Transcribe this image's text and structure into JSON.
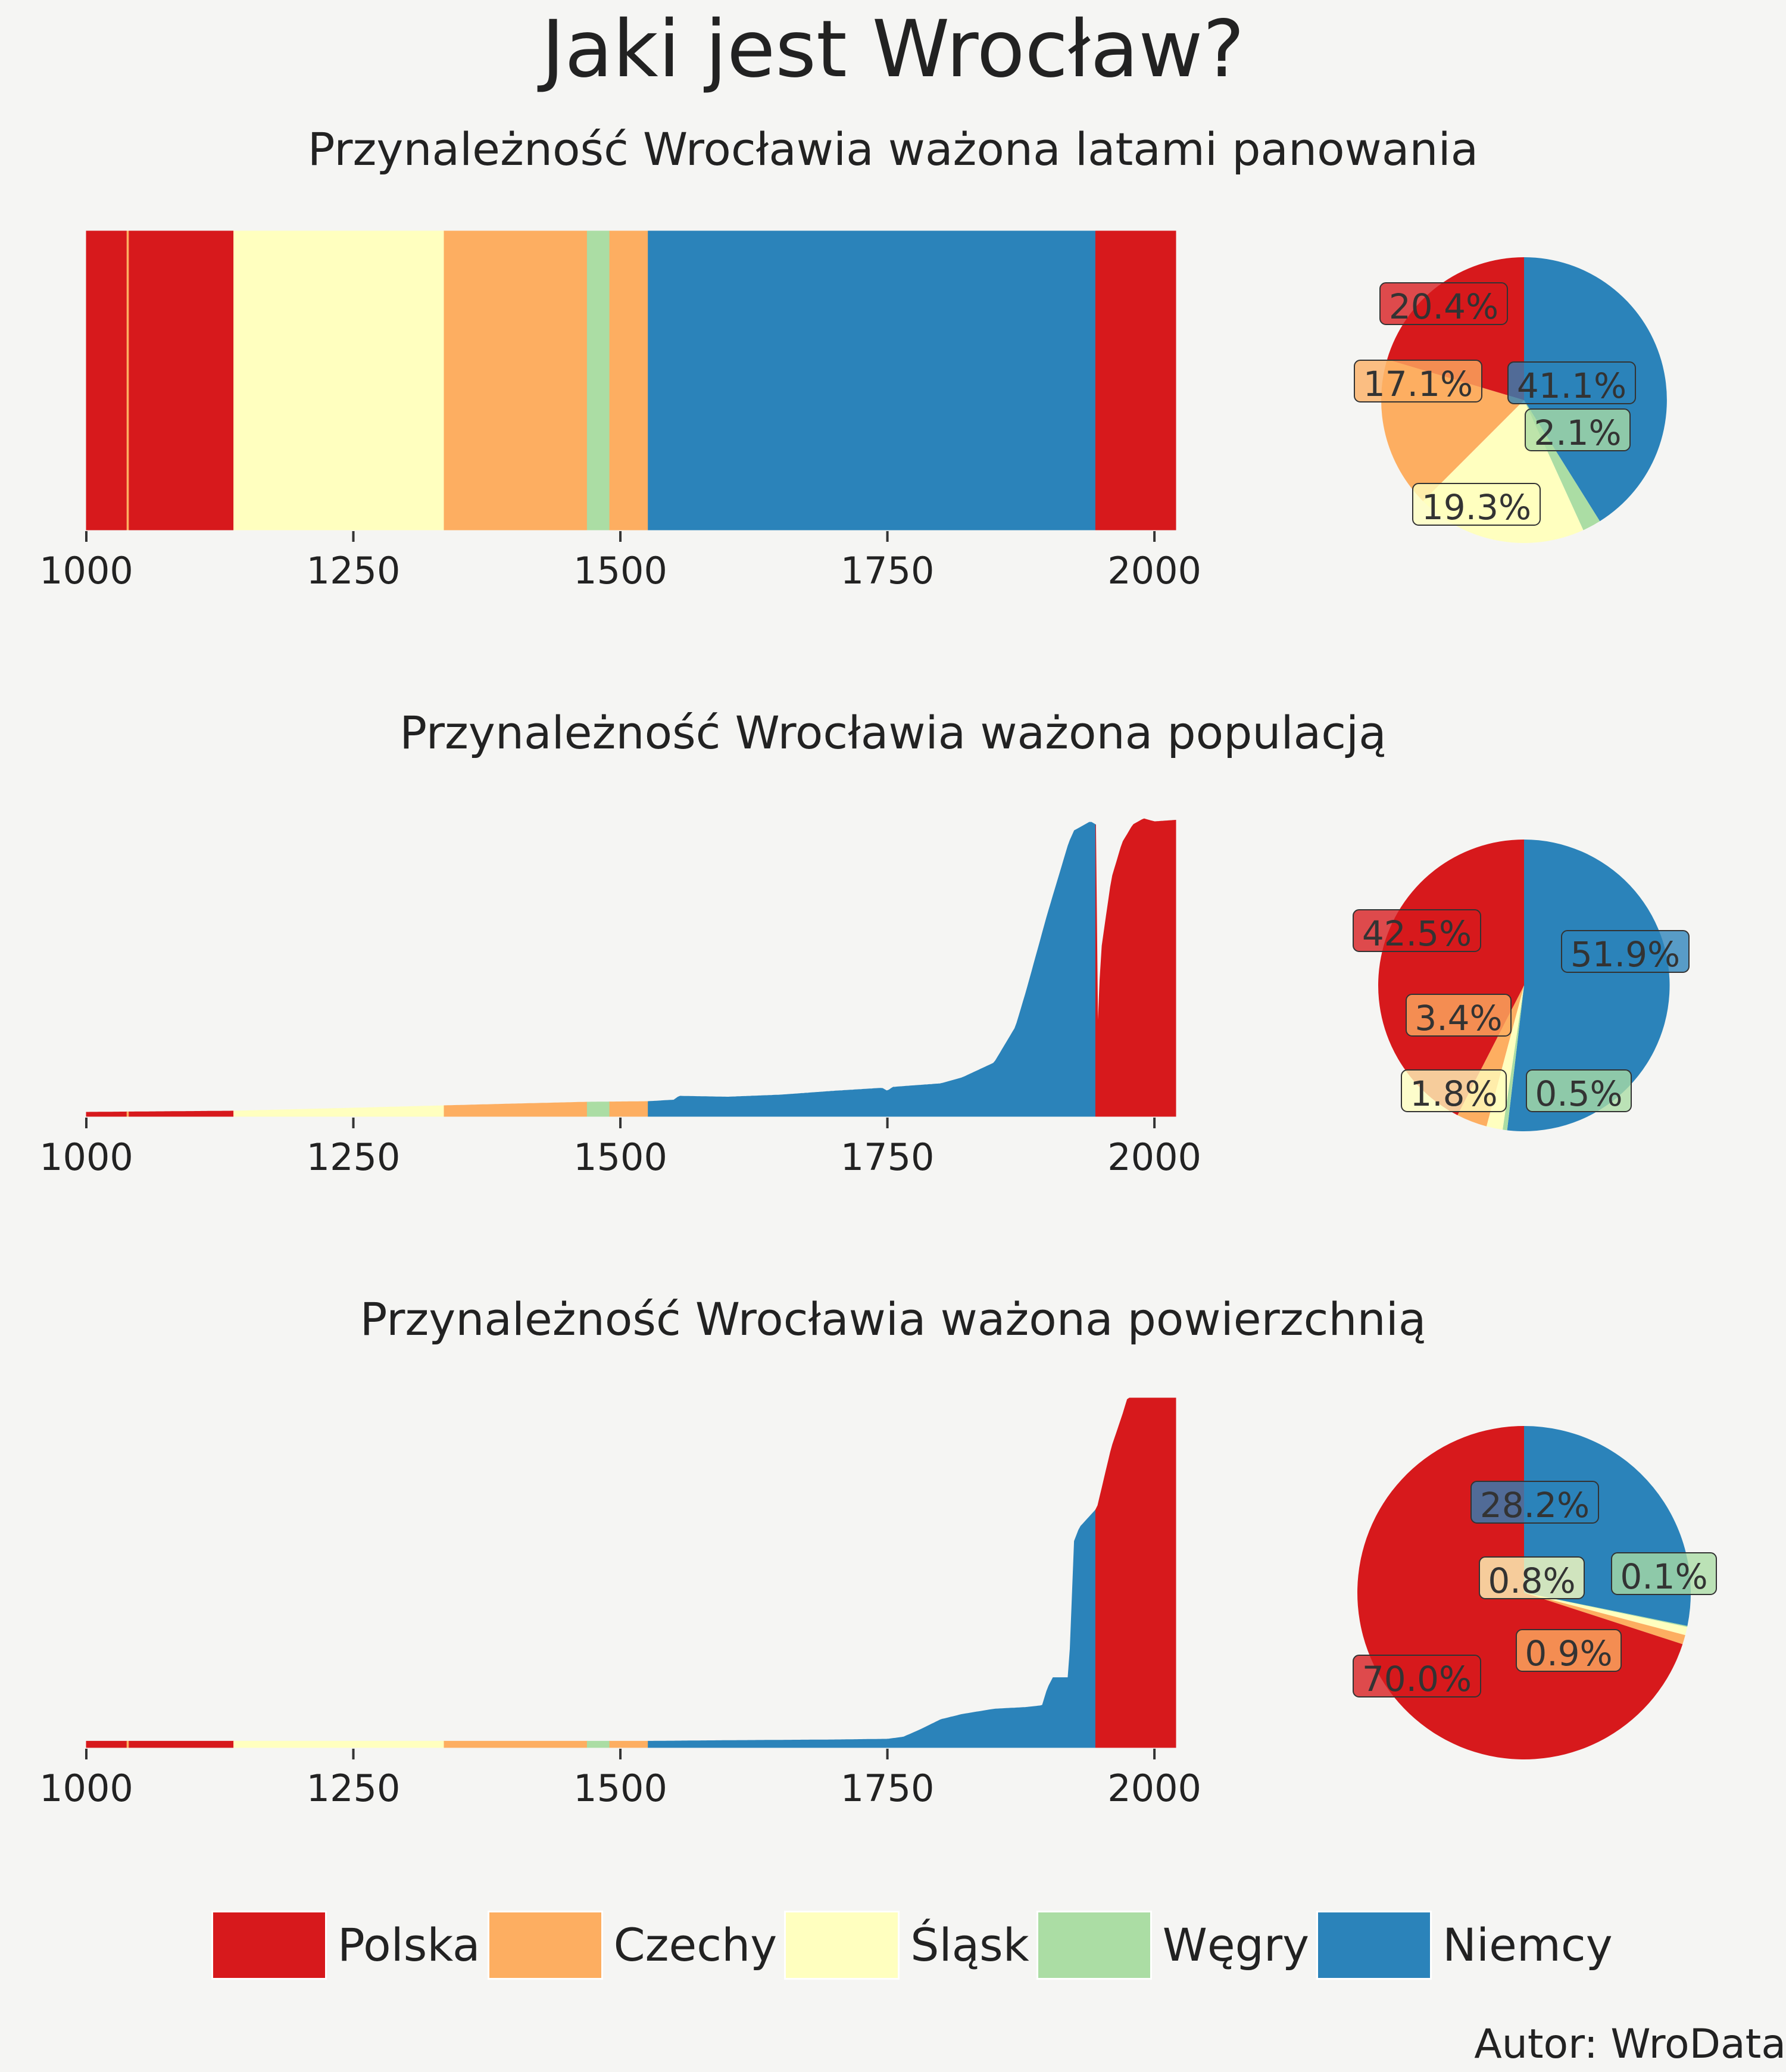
{
  "title": "Jaki jest Wrocław?",
  "author": "Autor: WroData",
  "colors": {
    "Polska": "#d7191c",
    "Czechy": "#fdae61",
    "Śląsk": "#ffffbf",
    "Węgry": "#abdda4",
    "Niemcy": "#2b83ba"
  },
  "legend": [
    {
      "label": "Polska",
      "color": "#d7191c"
    },
    {
      "label": "Czechy",
      "color": "#fdae61"
    },
    {
      "label": "Śląsk",
      "color": "#ffffbf"
    },
    {
      "label": "Węgry",
      "color": "#abdda4"
    },
    {
      "label": "Niemcy",
      "color": "#2b83ba"
    }
  ],
  "periods": [
    {
      "start": 1000,
      "end": 1038,
      "country": "Polska"
    },
    {
      "start": 1038,
      "end": 1040,
      "country": "Czechy"
    },
    {
      "start": 1040,
      "end": 1138,
      "country": "Polska"
    },
    {
      "start": 1138,
      "end": 1335,
      "country": "Śląsk"
    },
    {
      "start": 1335,
      "end": 1469,
      "country": "Czechy"
    },
    {
      "start": 1469,
      "end": 1490,
      "country": "Węgry"
    },
    {
      "start": 1490,
      "end": 1526,
      "country": "Czechy"
    },
    {
      "start": 1526,
      "end": 1945,
      "country": "Niemcy"
    },
    {
      "start": 1945,
      "end": 2020,
      "country": "Polska"
    }
  ],
  "chart_data": [
    {
      "type": "area",
      "title": "Przynależność Wrocławia ważona latami panowania",
      "xlim": [
        1000,
        2020
      ],
      "x_ticks": [
        "1000",
        "1250",
        "1500",
        "1750",
        "2000"
      ],
      "series": [
        {
          "x": [
            1000,
            2020
          ],
          "y": [
            1,
            1
          ]
        }
      ],
      "pie": [
        {
          "country": "Niemcy",
          "value": 41.1,
          "label": "41.1%"
        },
        {
          "country": "Węgry",
          "value": 2.1,
          "label": "2.1%"
        },
        {
          "country": "Śląsk",
          "value": 19.3,
          "label": "19.3%"
        },
        {
          "country": "Czechy",
          "value": 17.1,
          "label": "17.1%"
        },
        {
          "country": "Polska",
          "value": 20.4,
          "label": "20.4%"
        }
      ]
    },
    {
      "type": "area",
      "title": "Przynależność Wrocławia ważona populacją",
      "xlim": [
        1000,
        2020
      ],
      "x_ticks": [
        "1000",
        "1250",
        "1500",
        "1750",
        "2000"
      ],
      "series": [
        {
          "x": [
            1000,
            1138,
            1250,
            1335,
            1400,
            1469,
            1526,
            1550,
            1555,
            1600,
            1650,
            1700,
            1745,
            1750,
            1755,
            1800,
            1820,
            1850,
            1870,
            1880,
            1890,
            1900,
            1910,
            1920,
            1925,
            1930,
            1940,
            1945,
            1946,
            1950,
            1960,
            1970,
            1980,
            1990,
            2000,
            2020
          ],
          "y": [
            0.014,
            0.018,
            0.028,
            0.036,
            0.042,
            0.048,
            0.05,
            0.055,
            0.068,
            0.065,
            0.072,
            0.085,
            0.095,
            0.085,
            0.098,
            0.11,
            0.13,
            0.18,
            0.3,
            0.42,
            0.55,
            0.68,
            0.8,
            0.92,
            0.96,
            0.97,
            0.99,
            0.98,
            0.2,
            0.55,
            0.8,
            0.92,
            0.98,
            1.0,
            0.99,
            0.995
          ]
        }
      ],
      "pie": [
        {
          "country": "Niemcy",
          "value": 51.9,
          "label": "51.9%"
        },
        {
          "country": "Węgry",
          "value": 0.5,
          "label": "0.5%"
        },
        {
          "country": "Śląsk",
          "value": 1.8,
          "label": "1.8%"
        },
        {
          "country": "Czechy",
          "value": 3.4,
          "label": "3.4%"
        },
        {
          "country": "Polska",
          "value": 42.5,
          "label": "42.5%"
        }
      ]
    },
    {
      "type": "area",
      "title": "Przynależność Wrocławia ważona powierzchnią",
      "xlim": [
        1000,
        2020
      ],
      "x_ticks": [
        "1000",
        "1250",
        "1500",
        "1750",
        "2000"
      ],
      "series": [
        {
          "x": [
            1000,
            1526,
            1600,
            1700,
            1750,
            1765,
            1780,
            1800,
            1820,
            1850,
            1880,
            1895,
            1900,
            1905,
            1920,
            1925,
            1930,
            1945,
            1946,
            1960,
            1970,
            1975,
            2020
          ],
          "y": [
            0.018,
            0.018,
            0.02,
            0.022,
            0.024,
            0.03,
            0.05,
            0.08,
            0.095,
            0.11,
            0.115,
            0.12,
            0.17,
            0.2,
            0.2,
            0.59,
            0.63,
            0.68,
            0.68,
            0.86,
            0.95,
            1.0,
            1.0
          ]
        }
      ],
      "pie": [
        {
          "country": "Niemcy",
          "value": 28.2,
          "label": "28.2%"
        },
        {
          "country": "Węgry",
          "value": 0.1,
          "label": "0.1%"
        },
        {
          "country": "Śląsk",
          "value": 0.8,
          "label": "0.8%"
        },
        {
          "country": "Czechy",
          "value": 0.9,
          "label": "0.9%"
        },
        {
          "country": "Polska",
          "value": 70.0,
          "label": "70.0%"
        }
      ]
    }
  ]
}
